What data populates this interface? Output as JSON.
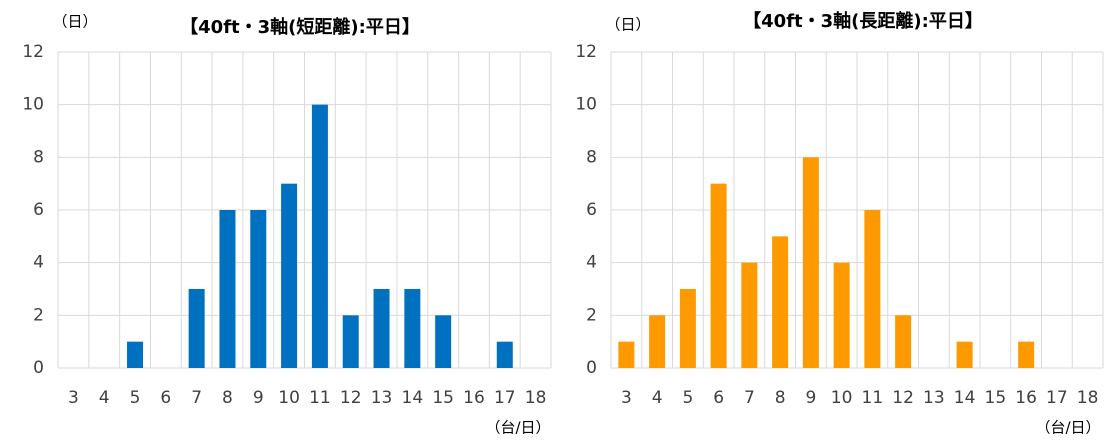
{
  "chart_data": [
    {
      "type": "bar",
      "title": "【40ft・3軸(短距離):平日】",
      "y_label": "（日）",
      "x_label": "（台/日）",
      "categories": [
        "3",
        "4",
        "5",
        "6",
        "7",
        "8",
        "9",
        "10",
        "11",
        "12",
        "13",
        "14",
        "15",
        "16",
        "17",
        "18"
      ],
      "values": [
        0,
        0,
        1,
        0,
        3,
        6,
        6,
        7,
        10,
        2,
        3,
        3,
        2,
        0,
        1,
        0
      ],
      "color": "#0070c0",
      "ylim": [
        0,
        12
      ],
      "yticks": [
        0,
        2,
        4,
        6,
        8,
        10,
        12
      ],
      "grid": true
    },
    {
      "type": "bar",
      "title": "【40ft・3軸(長距離):平日】",
      "y_label": "（日）",
      "x_label": "（台/日）",
      "categories": [
        "3",
        "4",
        "5",
        "6",
        "7",
        "8",
        "9",
        "10",
        "11",
        "12",
        "13",
        "14",
        "15",
        "16",
        "17",
        "18"
      ],
      "values": [
        1,
        2,
        3,
        7,
        4,
        5,
        8,
        4,
        6,
        2,
        0,
        1,
        0,
        1,
        0,
        0
      ],
      "color": "#ff9900",
      "ylim": [
        0,
        12
      ],
      "yticks": [
        0,
        2,
        4,
        6,
        8,
        10,
        12
      ],
      "grid": true
    }
  ]
}
